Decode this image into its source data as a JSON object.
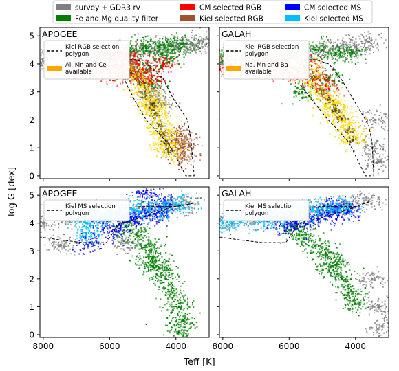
{
  "figure": {
    "shared_xlabel": "Teff [K]",
    "shared_ylabel": "log G [dex]"
  },
  "legend": {
    "entries": [
      {
        "label": "survey + GDR3 rv",
        "color": "#808080"
      },
      {
        "label": "Fe and Mg quality filter",
        "color": "#008000"
      },
      {
        "label": "CM selected RGB",
        "color": "#ff0000"
      },
      {
        "label": "Kiel selected RGB",
        "color": "#a0522d"
      },
      {
        "label": "CM selected MS",
        "color": "#0000ff"
      },
      {
        "label": "Kiel selected MS",
        "color": "#00bfff"
      }
    ]
  },
  "chart_data": [
    {
      "type": "scatter",
      "panel": "APOGEE",
      "title": "APOGEE",
      "xlim": [
        8100,
        3000
      ],
      "ylim": [
        5.3,
        -0.1
      ],
      "xticks": [
        8000,
        6000,
        4000
      ],
      "yticks": [
        0,
        1,
        2,
        3,
        4,
        5
      ],
      "inset_legend": [
        {
          "label": "Kiel RGB selection polygon",
          "style": "dashed",
          "color": "#000000"
        },
        {
          "label": "Al, Mn and Ce available",
          "style": "patch",
          "color": "#ffa500"
        }
      ],
      "polygon": {
        "name": "Kiel RGB selection polygon",
        "x": [
          5500,
          5650,
          5600,
          5200,
          4900,
          4400,
          4100,
          3650,
          3550,
          3450,
          3700,
          4200,
          4500,
          4900,
          5200,
          5500
        ],
        "y": [
          3.3,
          3.7,
          4.15,
          4.15,
          4.0,
          3.5,
          2.8,
          2.0,
          1.3,
          0.0,
          0.0,
          1.1,
          1.5,
          2.0,
          2.6,
          3.3
        ]
      },
      "series": [
        {
          "name": "survey + GDR3 rv",
          "color": "#808080",
          "points": [
            [
              8000,
              4.1
            ],
            [
              7000,
              4.2
            ],
            [
              6200,
              4.3
            ],
            [
              5600,
              4.4
            ],
            [
              5000,
              4.55
            ],
            [
              4500,
              4.6
            ],
            [
              4000,
              4.65
            ],
            [
              3500,
              4.7
            ],
            [
              3200,
              4.8
            ],
            [
              4800,
              3.0
            ],
            [
              4400,
              2.6
            ]
          ]
        },
        {
          "name": "Fe and Mg quality filter",
          "color": "#008000",
          "points": [
            [
              6600,
              4.15
            ],
            [
              6000,
              4.3
            ],
            [
              5400,
              4.45
            ],
            [
              4900,
              4.55
            ],
            [
              4500,
              4.6
            ],
            [
              4100,
              4.65
            ],
            [
              3800,
              4.7
            ],
            [
              4700,
              3.3
            ],
            [
              4900,
              3.8
            ],
            [
              4300,
              4.2
            ]
          ]
        },
        {
          "name": "CM selected RGB",
          "color": "#ff0000",
          "points": [
            [
              6800,
              3.8
            ],
            [
              6300,
              3.9
            ],
            [
              6000,
              3.7
            ],
            [
              5600,
              3.9
            ],
            [
              5200,
              3.6
            ],
            [
              5000,
              3.8
            ],
            [
              4800,
              3.4
            ],
            [
              6000,
              4.3
            ],
            [
              5500,
              4.2
            ],
            [
              4400,
              4.0
            ]
          ]
        },
        {
          "name": "Kiel selected RGB",
          "color": "#a0522d",
          "points": [
            [
              5500,
              3.6
            ],
            [
              5450,
              3.9
            ],
            [
              5400,
              4.1
            ],
            [
              3900,
              1.2
            ],
            [
              3800,
              1.0
            ],
            [
              3750,
              0.7
            ],
            [
              3850,
              1.5
            ]
          ]
        },
        {
          "name": "Al, Mn and Ce available",
          "color": "#ffd700",
          "points": [
            [
              5300,
              3.7
            ],
            [
              5100,
              3.3
            ],
            [
              4900,
              2.9
            ],
            [
              4700,
              2.6
            ],
            [
              4600,
              2.2
            ],
            [
              4500,
              1.8
            ],
            [
              4400,
              1.5
            ],
            [
              4300,
              1.2
            ],
            [
              4200,
              0.9
            ],
            [
              4700,
              2.45
            ]
          ]
        }
      ]
    },
    {
      "type": "scatter",
      "panel": "GALAH",
      "title": "GALAH",
      "xlim": [
        8100,
        3000
      ],
      "ylim": [
        5.3,
        -0.1
      ],
      "xticks": [
        8000,
        6000,
        4000
      ],
      "yticks": [
        0,
        1,
        2,
        3,
        4,
        5
      ],
      "inset_legend": [
        {
          "label": "Kiel RGB selection polygon",
          "style": "dashed",
          "color": "#000000"
        },
        {
          "label": "Na, Mn and Ba available",
          "style": "patch",
          "color": "#ffa500"
        }
      ],
      "polygon": {
        "name": "Kiel RGB selection polygon",
        "x": [
          5700,
          5750,
          5600,
          5200,
          4800,
          4400,
          4000,
          3600,
          3500,
          3450,
          3700,
          4200,
          4500,
          4900,
          5300,
          5700
        ],
        "y": [
          3.3,
          3.8,
          4.15,
          4.15,
          4.0,
          3.4,
          2.6,
          1.8,
          1.2,
          0.0,
          0.0,
          1.2,
          1.6,
          2.1,
          2.7,
          3.3
        ]
      },
      "series": [
        {
          "name": "survey + GDR3 rv",
          "color": "#808080",
          "points": [
            [
              8000,
              4.0
            ],
            [
              7000,
              4.1
            ],
            [
              6200,
              4.3
            ],
            [
              5600,
              4.4
            ],
            [
              5000,
              4.5
            ],
            [
              4500,
              4.6
            ],
            [
              4000,
              4.6
            ],
            [
              3600,
              4.8
            ],
            [
              3400,
              2.0
            ],
            [
              3500,
              1.0
            ],
            [
              3300,
              0.5
            ]
          ]
        },
        {
          "name": "Fe and Mg quality filter",
          "color": "#008000",
          "points": [
            [
              7900,
              4.2
            ],
            [
              7000,
              4.3
            ],
            [
              6000,
              4.4
            ],
            [
              5200,
              4.5
            ],
            [
              4600,
              4.4
            ],
            [
              4100,
              4.4
            ],
            [
              5600,
              3.0
            ],
            [
              4800,
              3.5
            ]
          ]
        },
        {
          "name": "CM selected RGB",
          "color": "#ff0000",
          "points": [
            [
              7800,
              3.9
            ],
            [
              7200,
              3.9
            ],
            [
              6600,
              3.8
            ],
            [
              6000,
              3.7
            ],
            [
              5500,
              3.9
            ],
            [
              5200,
              3.5
            ],
            [
              4900,
              3.2
            ],
            [
              6800,
              4.1
            ],
            [
              6200,
              4.0
            ]
          ]
        },
        {
          "name": "Al, Mn and Ce available",
          "color": "#ffd700",
          "points": [
            [
              5500,
              3.9
            ],
            [
              5300,
              3.5
            ],
            [
              5000,
              3.0
            ],
            [
              4800,
              2.7
            ],
            [
              4600,
              2.3
            ],
            [
              4400,
              2.0
            ],
            [
              4200,
              1.6
            ],
            [
              4100,
              1.3
            ],
            [
              4600,
              2.45
            ]
          ]
        }
      ]
    },
    {
      "type": "scatter",
      "panel": "APOGEE",
      "title": "APOGEE",
      "xlim": [
        8100,
        3000
      ],
      "ylim": [
        5.3,
        -0.1
      ],
      "xticks": [
        8000,
        6000,
        4000
      ],
      "yticks": [
        0,
        1,
        2,
        3,
        4,
        5
      ],
      "inset_legend": [
        {
          "label": "Kiel MS selection polygon",
          "style": "dashed",
          "color": "#000000"
        }
      ],
      "polygon": {
        "name": "Kiel MS selection polygon",
        "x": [
          8100,
          7000,
          6200,
          5500,
          5000,
          4000,
          3500,
          3500,
          4200,
          5000,
          5700,
          6100,
          6800,
          7500,
          8100
        ],
        "y": [
          4.65,
          4.65,
          4.65,
          4.55,
          4.6,
          4.6,
          4.7,
          4.7,
          4.55,
          4.2,
          4.0,
          3.3,
          3.3,
          3.4,
          3.5
        ]
      },
      "series": [
        {
          "name": "survey + GDR3 rv",
          "color": "#808080",
          "points": [
            [
              8000,
              4.0
            ],
            [
              7200,
              4.2
            ],
            [
              6000,
              4.3
            ],
            [
              5000,
              4.5
            ],
            [
              4200,
              4.6
            ],
            [
              3600,
              4.7
            ],
            [
              7500,
              3.2
            ],
            [
              5500,
              3.3
            ]
          ]
        },
        {
          "name": "Fe and Mg quality filter",
          "color": "#008000",
          "points": [
            [
              5200,
              3.6
            ],
            [
              4900,
              3.2
            ],
            [
              4700,
              2.8
            ],
            [
              4500,
              2.4
            ],
            [
              4300,
              2.0
            ],
            [
              4100,
              1.5
            ],
            [
              3900,
              1.0
            ],
            [
              3800,
              0.5
            ],
            [
              3900,
              0.1
            ],
            [
              5500,
              3.9
            ],
            [
              4700,
              2.45
            ]
          ]
        },
        {
          "name": "CM selected MS",
          "color": "#0000ff",
          "points": [
            [
              6200,
              4.0
            ],
            [
              5800,
              3.7
            ],
            [
              5500,
              4.2
            ],
            [
              5200,
              4.2
            ],
            [
              4800,
              4.3
            ],
            [
              4500,
              4.4
            ],
            [
              4900,
              5.1
            ],
            [
              4300,
              4.7
            ],
            [
              6600,
              3.3
            ]
          ]
        },
        {
          "name": "Kiel selected MS",
          "color": "#00bfff",
          "points": [
            [
              6700,
              3.6
            ],
            [
              6700,
              4.0
            ],
            [
              6700,
              4.4
            ],
            [
              6400,
              4.2
            ],
            [
              6100,
              4.3
            ],
            [
              5800,
              4.4
            ],
            [
              5300,
              4.5
            ],
            [
              4800,
              4.5
            ],
            [
              4300,
              4.6
            ],
            [
              3800,
              4.65
            ]
          ]
        }
      ]
    },
    {
      "type": "scatter",
      "panel": "GALAH",
      "title": "GALAH",
      "xlim": [
        8100,
        3000
      ],
      "ylim": [
        5.3,
        -0.1
      ],
      "xticks": [
        8000,
        6000,
        4000
      ],
      "yticks": [
        0,
        1,
        2,
        3,
        4,
        5
      ],
      "inset_legend": [
        {
          "label": "Kiel MS selection polygon",
          "style": "dashed",
          "color": "#000000"
        }
      ],
      "polygon": {
        "name": "Kiel MS selection polygon",
        "x": [
          8100,
          7000,
          6200,
          5500,
          5000,
          4000,
          3500,
          3500,
          4200,
          5000,
          5700,
          6100,
          6800,
          7500,
          8100
        ],
        "y": [
          4.65,
          4.65,
          4.65,
          4.55,
          4.6,
          4.6,
          4.8,
          4.8,
          4.5,
          4.2,
          4.0,
          3.3,
          3.3,
          3.4,
          3.5
        ]
      },
      "series": [
        {
          "name": "survey + GDR3 rv",
          "color": "#808080",
          "points": [
            [
              8000,
              4.0
            ],
            [
              7200,
              4.1
            ],
            [
              6200,
              4.3
            ],
            [
              5000,
              4.5
            ],
            [
              4200,
              4.6
            ],
            [
              3600,
              4.8
            ],
            [
              3500,
              2.0
            ],
            [
              3300,
              1.0
            ],
            [
              3200,
              0.3
            ]
          ]
        },
        {
          "name": "Fe and Mg quality filter",
          "color": "#008000",
          "points": [
            [
              5700,
              3.6
            ],
            [
              5200,
              3.2
            ],
            [
              4900,
              2.9
            ],
            [
              4600,
              2.5
            ],
            [
              4400,
              2.0
            ],
            [
              4200,
              1.5
            ],
            [
              4000,
              1.1
            ],
            [
              5800,
              3.9
            ],
            [
              4700,
              2.45
            ]
          ]
        },
        {
          "name": "CM selected MS",
          "color": "#0000ff",
          "points": [
            [
              6200,
              3.9
            ],
            [
              5800,
              4.0
            ],
            [
              5400,
              4.2
            ],
            [
              5000,
              4.3
            ],
            [
              4600,
              4.4
            ],
            [
              4200,
              4.4
            ],
            [
              4600,
              4.6
            ]
          ]
        },
        {
          "name": "Kiel selected MS",
          "color": "#00bfff",
          "points": [
            [
              8000,
              4.0
            ],
            [
              7500,
              4.1
            ],
            [
              7000,
              4.1
            ],
            [
              6500,
              4.2
            ],
            [
              6100,
              4.3
            ],
            [
              5700,
              4.4
            ],
            [
              5300,
              4.5
            ],
            [
              4800,
              4.55
            ],
            [
              4300,
              4.6
            ]
          ]
        }
      ]
    }
  ]
}
